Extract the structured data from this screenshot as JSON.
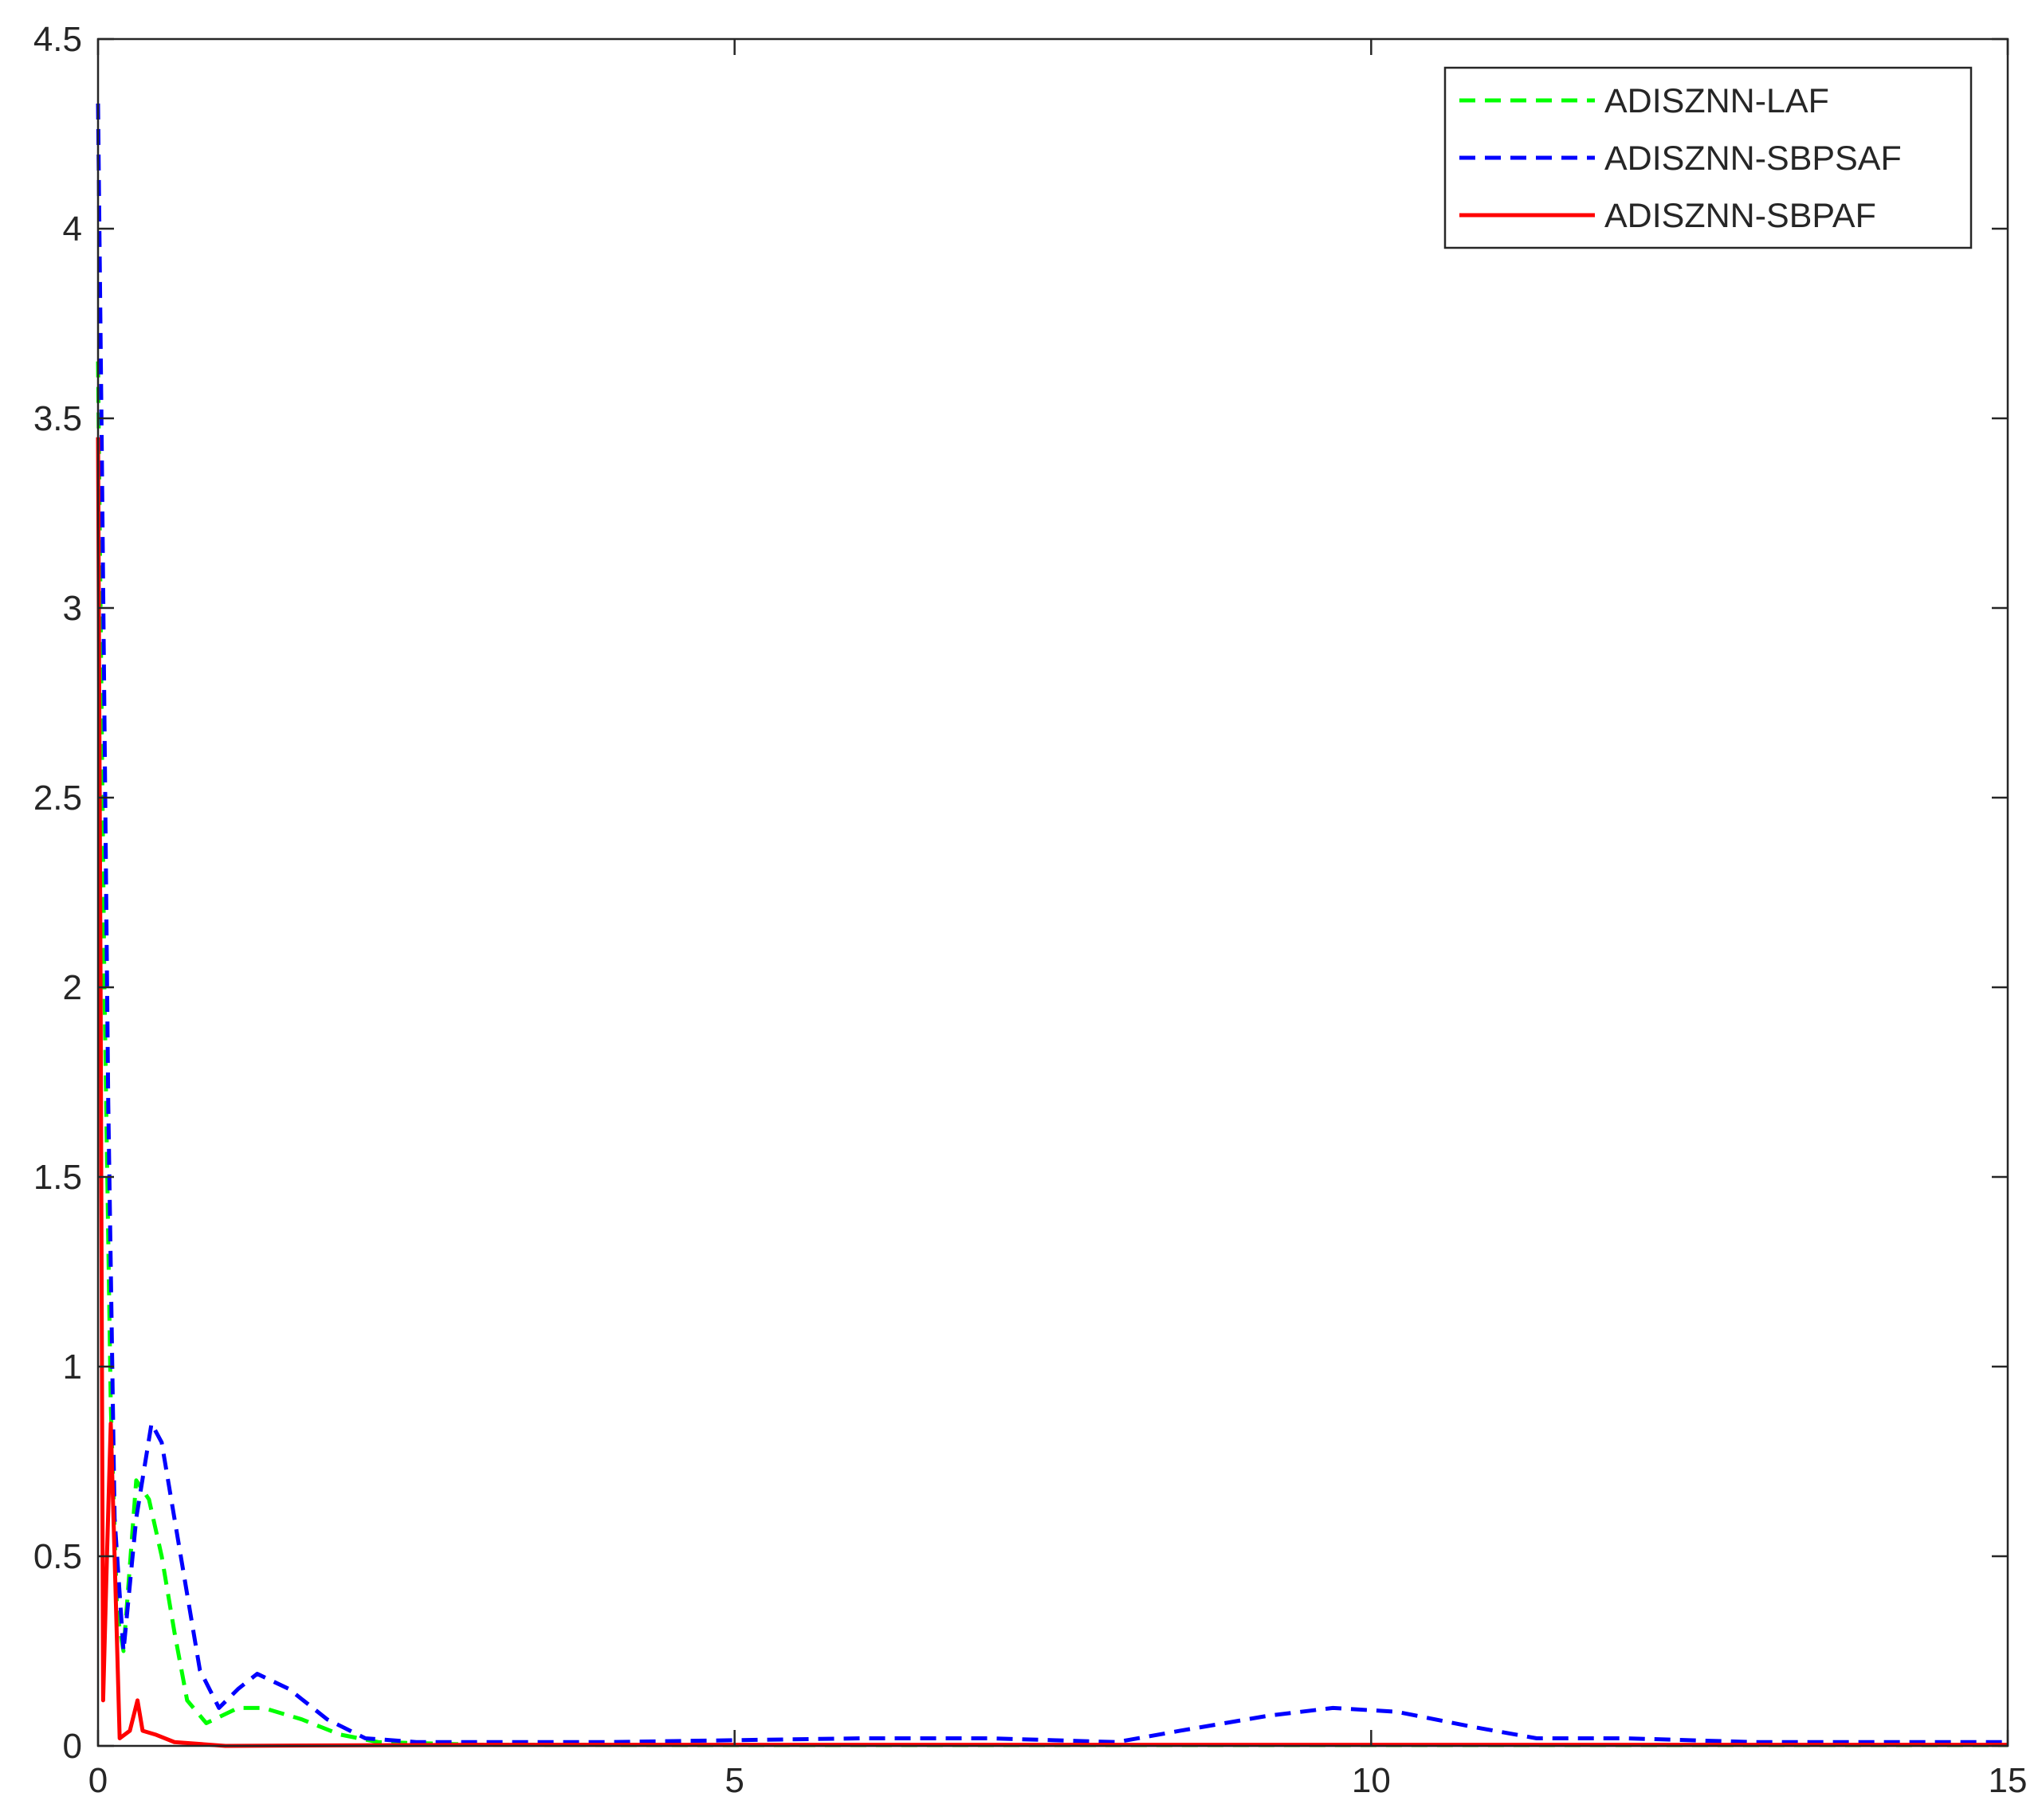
{
  "chart_data": {
    "type": "line",
    "xlim": [
      0,
      15
    ],
    "ylim": [
      0,
      4.5
    ],
    "xticks": [
      0,
      5,
      10,
      15
    ],
    "yticks": [
      0,
      0.5,
      1,
      1.5,
      2,
      2.5,
      3,
      3.5,
      4,
      4.5
    ],
    "legend": "upper right",
    "series": [
      {
        "name": "ADISZNN-LAF",
        "color": "#00ff00",
        "style": "dashed",
        "x": [
          0,
          0.05,
          0.1,
          0.15,
          0.2,
          0.3,
          0.4,
          0.5,
          0.6,
          0.7,
          0.85,
          1.1,
          1.3,
          1.6,
          1.9,
          2.2,
          3,
          5,
          8,
          10,
          12,
          15
        ],
        "values": [
          3.65,
          2.0,
          0.9,
          0.35,
          0.25,
          0.7,
          0.65,
          0.5,
          0.3,
          0.12,
          0.06,
          0.1,
          0.1,
          0.07,
          0.03,
          0.01,
          0.003,
          0.002,
          0.002,
          0.002,
          0.002,
          0.002
        ]
      },
      {
        "name": "ADISZNN-SBPSAF",
        "color": "#0000ff",
        "style": "dashed",
        "x": [
          0,
          0.03,
          0.08,
          0.13,
          0.2,
          0.3,
          0.42,
          0.5,
          0.65,
          0.8,
          0.95,
          1.1,
          1.25,
          1.5,
          1.8,
          2.1,
          2.5,
          4,
          5,
          6,
          7,
          7.5,
          8,
          8.5,
          9.2,
          9.7,
          10.2,
          10.8,
          11.3,
          12,
          12.5,
          13,
          15
        ],
        "values": [
          4.33,
          3.4,
          1.7,
          0.6,
          0.25,
          0.6,
          0.85,
          0.8,
          0.5,
          0.2,
          0.1,
          0.15,
          0.19,
          0.15,
          0.07,
          0.02,
          0.01,
          0.01,
          0.015,
          0.02,
          0.02,
          0.015,
          0.01,
          0.04,
          0.08,
          0.1,
          0.09,
          0.05,
          0.02,
          0.02,
          0.015,
          0.01,
          0.01
        ]
      },
      {
        "name": "ADISZNN-SBPAF",
        "color": "#ff0000",
        "style": "solid",
        "x": [
          0,
          0.02,
          0.04,
          0.07,
          0.1,
          0.13,
          0.17,
          0.25,
          0.31,
          0.35,
          0.45,
          0.6,
          1,
          3,
          6,
          10,
          15
        ],
        "values": [
          3.45,
          2.0,
          0.12,
          0.5,
          0.85,
          0.5,
          0.02,
          0.04,
          0.12,
          0.04,
          0.03,
          0.01,
          0.0,
          0.003,
          0.003,
          0.003,
          0.003
        ]
      }
    ]
  }
}
